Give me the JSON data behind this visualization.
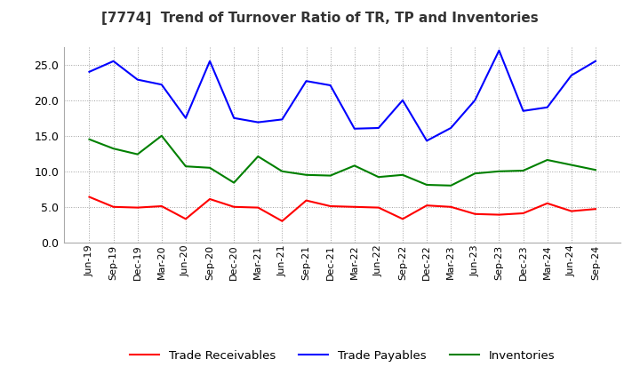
{
  "title": "[7774]  Trend of Turnover Ratio of TR, TP and Inventories",
  "x_labels": [
    "Jun-19",
    "Sep-19",
    "Dec-19",
    "Mar-20",
    "Jun-20",
    "Sep-20",
    "Dec-20",
    "Mar-21",
    "Jun-21",
    "Sep-21",
    "Dec-21",
    "Mar-22",
    "Jun-22",
    "Sep-22",
    "Dec-22",
    "Mar-23",
    "Jun-23",
    "Sep-23",
    "Dec-23",
    "Mar-24",
    "Jun-24",
    "Sep-24"
  ],
  "trade_receivables": [
    6.4,
    5.0,
    4.9,
    5.1,
    3.3,
    6.1,
    5.0,
    4.9,
    3.0,
    5.9,
    5.1,
    5.0,
    4.9,
    3.3,
    5.2,
    5.0,
    4.0,
    3.9,
    4.1,
    5.5,
    4.4,
    4.7
  ],
  "trade_payables": [
    24.0,
    25.5,
    22.9,
    22.2,
    17.5,
    25.5,
    17.5,
    16.9,
    17.3,
    22.7,
    22.1,
    16.0,
    16.1,
    20.0,
    14.3,
    16.1,
    20.0,
    27.0,
    18.5,
    19.0,
    23.5,
    25.5
  ],
  "inventories": [
    14.5,
    13.2,
    12.4,
    15.0,
    10.7,
    10.5,
    8.4,
    12.1,
    10.0,
    9.5,
    9.4,
    10.8,
    9.2,
    9.5,
    8.1,
    8.0,
    9.7,
    10.0,
    10.1,
    11.6,
    10.9,
    10.2
  ],
  "tr_color": "#ff0000",
  "tp_color": "#0000ff",
  "inv_color": "#008000",
  "fig_facecolor": "#ffffff",
  "plot_facecolor": "#ffffff",
  "grid_color": "#888888",
  "ylim": [
    0.0,
    27.5
  ],
  "yticks": [
    0.0,
    5.0,
    10.0,
    15.0,
    20.0,
    25.0
  ],
  "legend_labels": [
    "Trade Receivables",
    "Trade Payables",
    "Inventories"
  ]
}
